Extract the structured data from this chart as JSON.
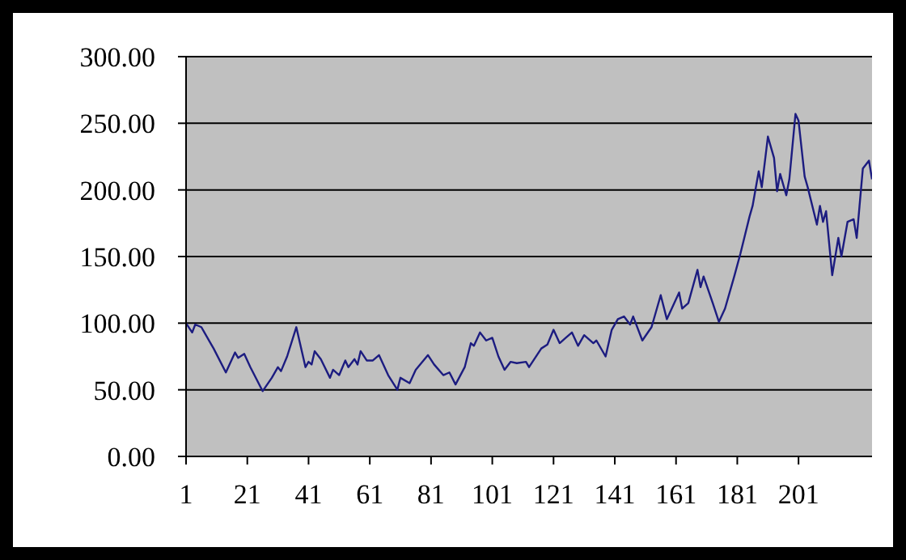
{
  "chart_data": {
    "type": "line",
    "x": [
      1,
      3,
      4,
      6,
      7,
      9,
      10,
      14,
      17,
      18,
      20,
      22,
      26,
      29,
      31,
      32,
      34,
      37,
      40,
      41,
      42,
      43,
      45,
      48,
      49,
      51,
      53,
      54,
      56,
      57,
      58,
      60,
      62,
      64,
      67,
      70,
      71,
      74,
      76,
      80,
      82,
      85,
      87,
      89,
      92,
      94,
      95,
      97,
      99,
      101,
      103,
      105,
      107,
      109,
      112,
      113,
      117,
      119,
      121,
      123,
      125,
      127,
      129,
      131,
      134,
      135,
      138,
      140,
      142,
      144,
      146,
      147,
      150,
      153,
      156,
      158,
      162,
      163,
      165,
      168,
      169,
      170,
      173,
      175,
      177,
      180,
      182,
      185,
      186,
      188,
      189,
      191,
      193,
      194,
      195,
      197,
      198,
      200,
      201,
      203,
      204,
      207,
      208,
      209,
      210,
      212,
      214,
      215,
      217,
      219,
      220,
      222,
      224,
      225
    ],
    "series": [
      {
        "color": "#1c1c80",
        "values": [
          100,
          93,
          99,
          97,
          93,
          85,
          81,
          63,
          78,
          74,
          77,
          67,
          49,
          59,
          67,
          64,
          75,
          97,
          67,
          71,
          69,
          79,
          73,
          59,
          65,
          61,
          72,
          67,
          73,
          69,
          79,
          72,
          72,
          76,
          61,
          50,
          59,
          55,
          65,
          76,
          69,
          61,
          63,
          54,
          67,
          85,
          83,
          93,
          87,
          89,
          75,
          65,
          71,
          70,
          71,
          67,
          81,
          84,
          95,
          85,
          89,
          93,
          83,
          91,
          85,
          87,
          75,
          95,
          103,
          105,
          99,
          105,
          87,
          97,
          121,
          103,
          123,
          111,
          115,
          140,
          127,
          135,
          115,
          101,
          111,
          135,
          152,
          180,
          188,
          214,
          202,
          240,
          224,
          199,
          212,
          196,
          208,
          257,
          252,
          210,
          202,
          174,
          188,
          176,
          184,
          136,
          164,
          150,
          176,
          178,
          164,
          216,
          222,
          208
        ]
      }
    ],
    "xlim": [
      1,
      225
    ],
    "xticks": [
      1,
      21,
      41,
      61,
      81,
      101,
      121,
      141,
      161,
      181,
      201
    ],
    "ylim": [
      0,
      300
    ],
    "yticks": [
      {
        "value": 0,
        "label": "0.00"
      },
      {
        "value": 50,
        "label": "50.00"
      },
      {
        "value": 100,
        "label": "100.00"
      },
      {
        "value": 150,
        "label": "150.00"
      },
      {
        "value": 200,
        "label": "200.00"
      },
      {
        "value": 250,
        "label": "250.00"
      },
      {
        "value": 300,
        "label": "300.00"
      }
    ],
    "grid": "y",
    "marker": "none",
    "line_style": "solid",
    "legend": false
  }
}
